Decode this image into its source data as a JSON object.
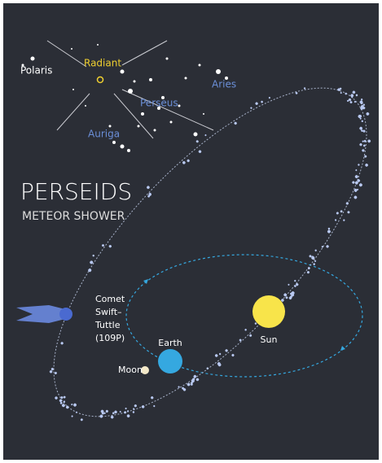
{
  "title": "PERSEIDS",
  "subtitle": "METEOR SHOWER",
  "constellations": {
    "polaris": "Polaris",
    "radiant": "Radiant",
    "perseus": "Perseus",
    "aries": "Aries",
    "auriga": "Auriga"
  },
  "comet": {
    "lines": [
      "Comet",
      "Swift–",
      "Tuttle",
      "(109P)"
    ]
  },
  "bodies": {
    "earth": "Earth",
    "sun": "Sun",
    "moon": "Moon"
  }
}
